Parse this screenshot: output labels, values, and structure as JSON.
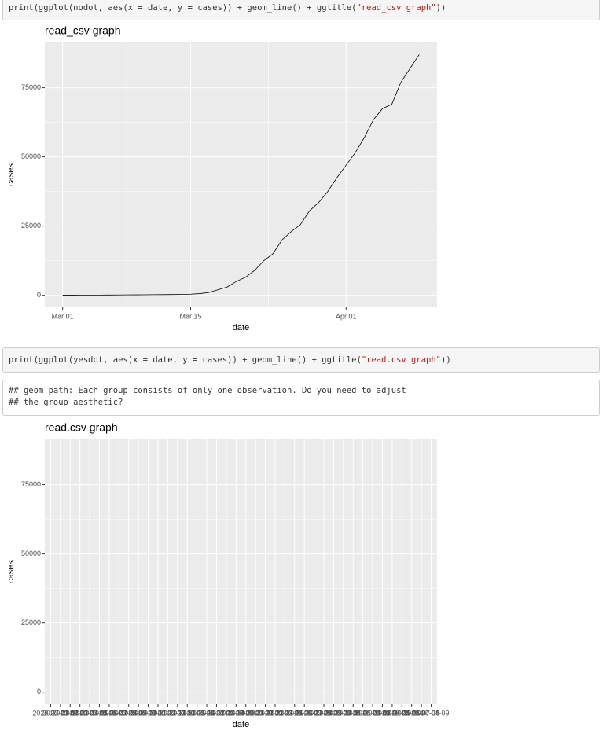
{
  "code": [
    [
      "print(ggplot(nodot, aes(x = date, y = cases)) + geom_line() + ggtitle(",
      "\"read_csv graph\"",
      "))"
    ],
    [
      "print(ggplot(yesdot, aes(x = date, y = cases)) + geom_line() + ggtitle(",
      "\"read.csv graph\"",
      "))"
    ]
  ],
  "output": [
    "## geom_path: Each group consists of only one observation. Do you need to adjust",
    "## the group aesthetic?"
  ],
  "chart_data": [
    {
      "type": "line",
      "title": "read_csv graph",
      "x_label": "date",
      "y_label": "cases",
      "x": [
        "Mar 01",
        "Mar 02",
        "Mar 03",
        "Mar 04",
        "Mar 05",
        "Mar 06",
        "Mar 07",
        "Mar 08",
        "Mar 09",
        "Mar 10",
        "Mar 11",
        "Mar 12",
        "Mar 13",
        "Mar 14",
        "Mar 15",
        "Mar 16",
        "Mar 17",
        "Mar 18",
        "Mar 19",
        "Mar 20",
        "Mar 21",
        "Mar 22",
        "Mar 23",
        "Mar 24",
        "Mar 25",
        "Mar 26",
        "Mar 27",
        "Mar 28",
        "Mar 29",
        "Mar 30",
        "Mar 31",
        "Apr 01",
        "Apr 02",
        "Apr 03",
        "Apr 04",
        "Apr 05",
        "Apr 06",
        "Apr 07",
        "Apr 08",
        "Apr 09"
      ],
      "series": [
        {
          "name": "cases",
          "color": "#000000",
          "values": [
            30,
            40,
            50,
            60,
            80,
            100,
            120,
            150,
            180,
            200,
            220,
            250,
            280,
            300,
            400,
            600,
            1000,
            2000,
            3000,
            5000,
            6500,
            9000,
            12500,
            15000,
            20000,
            23000,
            25500,
            30500,
            33500,
            37500,
            42500,
            47000,
            51500,
            57000,
            63500,
            67500,
            69000,
            77000,
            82000,
            87000
          ]
        }
      ],
      "xticks": [
        "Mar 01",
        "Mar 15",
        "Apr 01"
      ],
      "ylim": [
        -4350,
        91350
      ],
      "yticks": [
        0,
        25000,
        50000,
        75000
      ],
      "grid": true
    },
    {
      "type": "line",
      "title": "read.csv graph",
      "x_label": "date",
      "y_label": "cases",
      "categories": [
        "2020-03-01",
        "2020-03-02",
        "2020-03-03",
        "2020-03-04",
        "2020-03-05",
        "2020-03-06",
        "2020-03-07",
        "2020-03-08",
        "2020-03-09",
        "2020-03-10",
        "2020-03-11",
        "2020-03-12",
        "2020-03-13",
        "2020-03-14",
        "2020-03-15",
        "2020-03-16",
        "2020-03-17",
        "2020-03-18",
        "2020-03-19",
        "2020-03-20",
        "2020-03-21",
        "2020-03-22",
        "2020-03-23",
        "2020-03-24",
        "2020-03-25",
        "2020-03-26",
        "2020-03-27",
        "2020-03-28",
        "2020-03-29",
        "2020-03-30",
        "2020-03-31",
        "2020-04-01",
        "2020-04-02",
        "2020-04-03",
        "2020-04-04",
        "2020-04-05",
        "2020-04-06",
        "2020-04-07",
        "2020-04-08",
        "2020-04-09"
      ],
      "ylim": [
        -4350,
        91350
      ],
      "yticks": [
        0,
        25000,
        50000,
        75000
      ],
      "grid": true
    }
  ]
}
